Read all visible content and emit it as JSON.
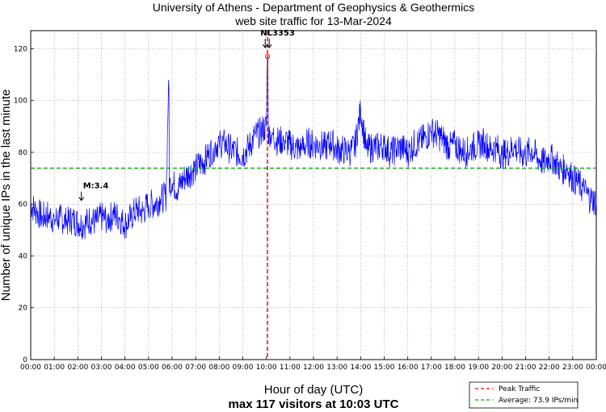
{
  "chart_data": {
    "type": "line",
    "title": "University of Athens - Department of Geophysics & Geothermics",
    "subtitle": "web site traffic for 13-Mar-2024",
    "xlabel": "Hour of day (UTC)",
    "xlabel2": "max 117 visitors at 10:03 UTC",
    "ylabel": "Number of unique IPs in the last minute",
    "ylim": [
      0,
      127
    ],
    "xlim": [
      0,
      24
    ],
    "yticks": [
      "0",
      "20",
      "40",
      "60",
      "80",
      "100",
      "120"
    ],
    "xticks": [
      "00:00",
      "01:00",
      "02:00",
      "03:00",
      "04:00",
      "05:00",
      "06:00",
      "07:00",
      "08:00",
      "09:00",
      "10:00",
      "11:00",
      "12:00",
      "13:00",
      "14:00",
      "15:00",
      "16:00",
      "17:00",
      "18:00",
      "19:00",
      "20:00",
      "21:00",
      "22:00",
      "23:00",
      "00:00"
    ],
    "grid": true,
    "series": [
      {
        "name": "",
        "color": "#0000ff",
        "x": [
          0,
          0.25,
          0.5,
          0.75,
          1,
          1.25,
          1.5,
          1.75,
          2,
          2.25,
          2.5,
          2.75,
          3,
          3.25,
          3.5,
          3.75,
          4,
          4.25,
          4.5,
          4.75,
          5,
          5.25,
          5.5,
          5.75,
          5.85,
          6,
          6.25,
          6.5,
          6.75,
          7,
          7.25,
          7.5,
          7.75,
          8,
          8.25,
          8.5,
          8.75,
          9,
          9.25,
          9.5,
          9.75,
          10,
          10.05,
          10.25,
          10.5,
          10.75,
          11,
          11.25,
          11.5,
          11.75,
          12,
          12.25,
          12.5,
          12.75,
          13,
          13.25,
          13.5,
          13.75,
          14,
          14.25,
          14.5,
          14.75,
          15,
          15.25,
          15.5,
          15.75,
          16,
          16.25,
          16.5,
          16.75,
          17,
          17.25,
          17.5,
          17.75,
          18,
          18.25,
          18.5,
          18.75,
          19,
          19.25,
          19.5,
          19.75,
          20,
          20.25,
          20.5,
          20.75,
          21,
          21.25,
          21.5,
          21.75,
          22,
          22.25,
          22.5,
          22.75,
          23,
          23.25,
          23.5,
          23.75,
          24
        ],
        "values": [
          60,
          57,
          55,
          56,
          54,
          55,
          53,
          54,
          53,
          52,
          54,
          53,
          55,
          54,
          56,
          55,
          52,
          55,
          58,
          57,
          60,
          60,
          62,
          63,
          108,
          68,
          66,
          70,
          72,
          74,
          76,
          78,
          82,
          84,
          83,
          81,
          80,
          79,
          82,
          86,
          88,
          90,
          117,
          87,
          84,
          85,
          83,
          82,
          81,
          84,
          83,
          83,
          82,
          84,
          81,
          81,
          80,
          82,
          96,
          81,
          82,
          82,
          83,
          80,
          81,
          82,
          80,
          83,
          84,
          86,
          88,
          87,
          85,
          82,
          83,
          81,
          80,
          82,
          83,
          84,
          81,
          82,
          79,
          80,
          82,
          80,
          79,
          81,
          78,
          76,
          78,
          77,
          73,
          74,
          70,
          68,
          65,
          62,
          61
        ]
      }
    ],
    "reference_lines": [
      {
        "name": "Peak Traffic",
        "type": "vertical",
        "x": 10.05,
        "color": "#ff0000"
      },
      {
        "name": "Average: 73.9 IPs/min",
        "type": "horizontal",
        "y": 73.9,
        "color": "#00aa00"
      }
    ],
    "annotations": [
      {
        "text": "M:3.4",
        "x": 2.15,
        "y": 63
      },
      {
        "text": "NL3353",
        "x": 9.95,
        "y": 122
      }
    ],
    "peak_marker": {
      "x": 10.05,
      "y": 117
    },
    "legend_position": "bottom-right"
  }
}
